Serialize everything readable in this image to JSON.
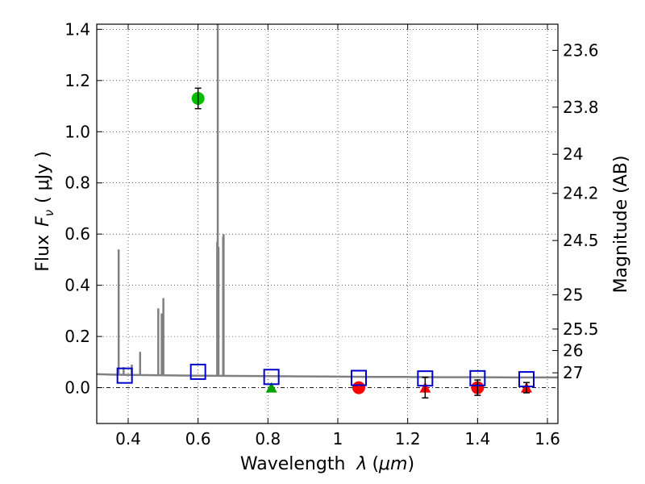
{
  "chart_data": {
    "type": "scatter",
    "xlabel": "Wavelength",
    "xlabel_symbol": "λ",
    "xlabel_unit_open": "(",
    "xlabel_unit": "μm",
    "xlabel_unit_close": ")",
    "ylabel": "Flux",
    "ylabel_symbol": "F",
    "ylabel_subscript": "ν",
    "ylabel_unit": "( μJy )",
    "y2label": "Magnitude (AB)",
    "xlim": [
      0.31,
      1.63
    ],
    "ylim": [
      -0.14,
      1.42
    ],
    "grid": true,
    "x_ticks": [
      0.4,
      0.6,
      0.8,
      1.0,
      1.2,
      1.4,
      1.6
    ],
    "x_tick_labels": [
      "0.4",
      "0.6",
      "0.8",
      "1",
      "1.2",
      "1.4",
      "1.6"
    ],
    "y_ticks": [
      0.0,
      0.2,
      0.4,
      0.6,
      0.8,
      1.0,
      1.2,
      1.4
    ],
    "y_tick_labels": [
      "0.0",
      "0.2",
      "0.4",
      "0.6",
      "0.8",
      "1.0",
      "1.2",
      "1.4"
    ],
    "y2_ticks": [
      {
        "label": "23.6",
        "flux": 1.318
      },
      {
        "label": "23.8",
        "flux": 1.096
      },
      {
        "label": "24",
        "flux": 0.912
      },
      {
        "label": "24.2",
        "flux": 0.759
      },
      {
        "label": "24.5",
        "flux": 0.575
      },
      {
        "label": "25",
        "flux": 0.363
      },
      {
        "label": "25.5",
        "flux": 0.229
      },
      {
        "label": "26",
        "flux": 0.145
      },
      {
        "label": "27",
        "flux": 0.058
      }
    ],
    "colors": {
      "model": "#808080",
      "model_mag": "#0000cc",
      "detection": "#00c000",
      "nondetection": "#ff0000",
      "upper_limit_green": "#00a000",
      "upper_limit_red": "#ff0000",
      "errorbar": "#000000"
    },
    "model_continuum": [
      [
        0.31,
        0.053
      ],
      [
        0.35,
        0.051
      ],
      [
        0.4,
        0.05
      ],
      [
        0.45,
        0.049
      ],
      [
        0.5,
        0.048
      ],
      [
        0.6,
        0.047
      ],
      [
        0.7,
        0.046
      ],
      [
        0.8,
        0.045
      ],
      [
        0.9,
        0.044
      ],
      [
        1.0,
        0.043
      ],
      [
        1.1,
        0.042
      ],
      [
        1.2,
        0.042
      ],
      [
        1.3,
        0.041
      ],
      [
        1.4,
        0.041
      ],
      [
        1.5,
        0.04
      ],
      [
        1.63,
        0.04
      ]
    ],
    "emission_lines": [
      {
        "x": 0.3727,
        "peak": 0.54
      },
      {
        "x": 0.3869,
        "peak": 0.08
      },
      {
        "x": 0.4102,
        "peak": 0.09
      },
      {
        "x": 0.4341,
        "peak": 0.14
      },
      {
        "x": 0.4861,
        "peak": 0.31
      },
      {
        "x": 0.4959,
        "peak": 0.29
      },
      {
        "x": 0.5007,
        "peak": 0.35
      },
      {
        "x": 0.6563,
        "peak": 1.45
      },
      {
        "x": 0.6548,
        "peak": 0.57
      },
      {
        "x": 0.6584,
        "peak": 0.55
      },
      {
        "x": 0.6717,
        "peak": 0.59
      },
      {
        "x": 0.6731,
        "peak": 0.6
      }
    ],
    "model_mags": [
      {
        "x": 0.39,
        "y": 0.047
      },
      {
        "x": 0.6,
        "y": 0.062
      },
      {
        "x": 0.81,
        "y": 0.042
      },
      {
        "x": 1.06,
        "y": 0.038
      },
      {
        "x": 1.25,
        "y": 0.036
      },
      {
        "x": 1.4,
        "y": 0.037
      },
      {
        "x": 1.54,
        "y": 0.033
      }
    ],
    "detections": [
      {
        "x": 0.6,
        "y": 1.13,
        "err": 0.04
      }
    ],
    "nondetections": [
      {
        "x": 1.06,
        "y": 0.0,
        "err": 0.0
      },
      {
        "x": 1.4,
        "y": 0.0,
        "err": 0.03
      }
    ],
    "upper_limits": [
      {
        "x": 0.81,
        "y": 0.0,
        "color": "green"
      },
      {
        "x": 1.25,
        "y": 0.0,
        "color": "red",
        "err": 0.04
      },
      {
        "x": 1.54,
        "y": 0.0,
        "color": "red",
        "err": 0.02
      }
    ]
  }
}
